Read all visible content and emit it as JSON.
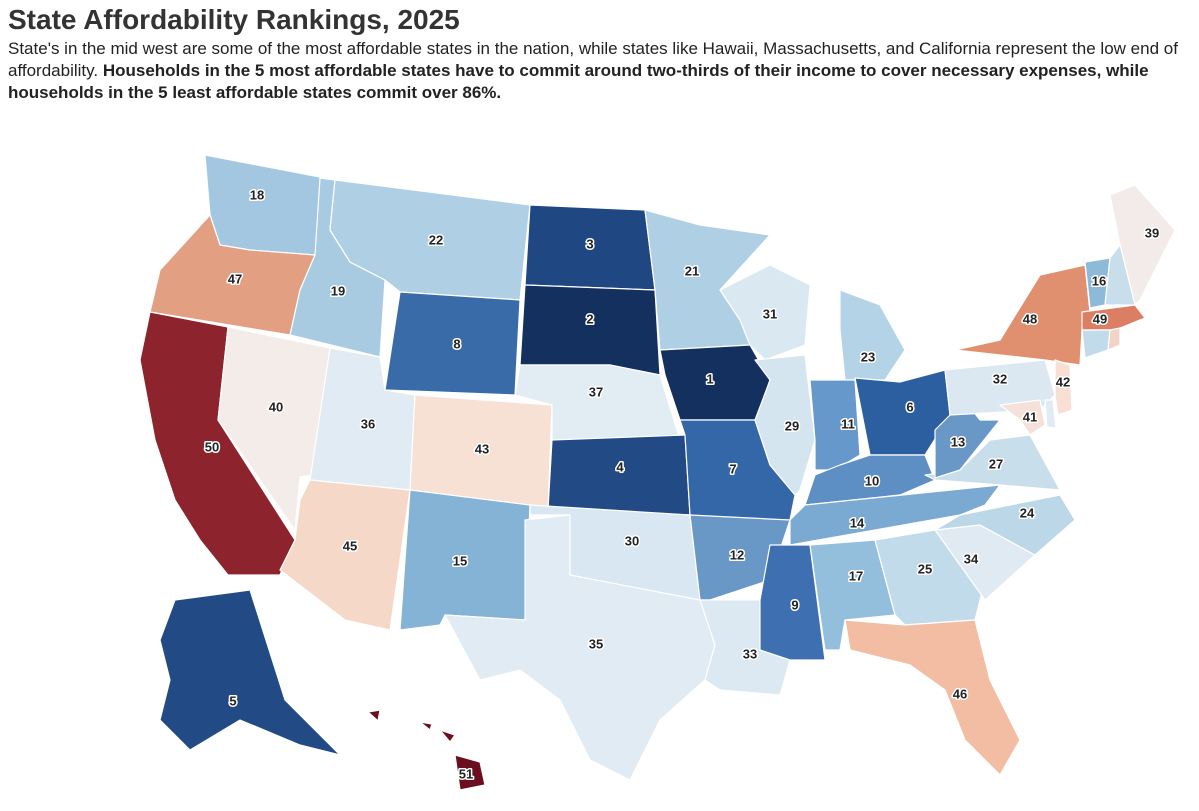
{
  "header": {
    "title": "State Affordability Rankings, 2025",
    "subtitle": "State's in the mid west are some of the most affordable states in the nation, while states like Hawaii, Massachusetts, and California represent the low end of affordability.",
    "subtitle_bold": "Households in the 5 most affordable states have to commit around two-thirds of their income to cover necessary expenses, while households in the 5 least affordable states commit over 86%."
  },
  "map": {
    "states": [
      {
        "rank": 18,
        "color": "#a3c7e0"
      },
      {
        "rank": 47,
        "color": "#e39f82"
      },
      {
        "rank": 50,
        "color": "#8d232c"
      },
      {
        "rank": 40,
        "color": "#f4ece8"
      },
      {
        "rank": 19,
        "color": "#a8cbe2"
      },
      {
        "rank": 22,
        "color": "#afcfe4"
      },
      {
        "rank": 8,
        "color": "#3a6ba9"
      },
      {
        "rank": 36,
        "color": "#e0ebf3"
      },
      {
        "rank": 43,
        "color": "#f6e1d4"
      },
      {
        "rank": 45,
        "color": "#f5d8c8"
      },
      {
        "rank": 15,
        "color": "#84b3d6"
      },
      {
        "rank": 3,
        "color": "#1f4782"
      },
      {
        "rank": 2,
        "color": "#14305f"
      },
      {
        "rank": 37,
        "color": "#e1ecf3"
      },
      {
        "rank": 4,
        "color": "#224a85"
      },
      {
        "rank": 30,
        "color": "#d8e7f1"
      },
      {
        "rank": 35,
        "color": "#e0ebf3"
      },
      {
        "rank": 21,
        "color": "#aecfe4"
      },
      {
        "rank": 1,
        "color": "#14305f"
      },
      {
        "rank": 7,
        "color": "#3467a7"
      },
      {
        "rank": 12,
        "color": "#6a98c6"
      },
      {
        "rank": 33,
        "color": "#dce9f2"
      },
      {
        "rank": 9,
        "color": "#3e6fb0"
      },
      {
        "rank": 31,
        "color": "#d9e8f1"
      },
      {
        "rank": 29,
        "color": "#d4e5f0"
      },
      {
        "rank": 23,
        "color": "#b4d3e6"
      },
      {
        "rank": 11,
        "color": "#6698cb"
      },
      {
        "rank": 6,
        "color": "#2b5fa0"
      },
      {
        "rank": 10,
        "color": "#5d8fc5"
      },
      {
        "rank": 14,
        "color": "#7aa9d1"
      },
      {
        "rank": 17,
        "color": "#93bfdd"
      },
      {
        "rank": 25,
        "color": "#c2dbea"
      },
      {
        "rank": 46,
        "color": "#f2bda3"
      },
      {
        "rank": 34,
        "color": "#dfeaf2"
      },
      {
        "rank": 24,
        "color": "#bcd7e8"
      },
      {
        "rank": 27,
        "color": "#c8deeb"
      },
      {
        "rank": 13,
        "color": "#6a98c6"
      },
      {
        "rank": 32,
        "color": "#dbe8f1"
      },
      {
        "rank": 48,
        "color": "#e1906f"
      },
      {
        "rank": 16,
        "color": "#8ebad9"
      },
      {
        "rank": 39,
        "color": "#f2ebe9"
      },
      {
        "rank": 49,
        "color": "#db7e64"
      },
      {
        "rank": 42,
        "color": "#f7dfd4"
      },
      {
        "rank": 41,
        "color": "#f6e1da"
      },
      {
        "rank": 5,
        "color": "#224a85"
      },
      {
        "rank": 51,
        "color": "#6b0f1e"
      }
    ]
  }
}
